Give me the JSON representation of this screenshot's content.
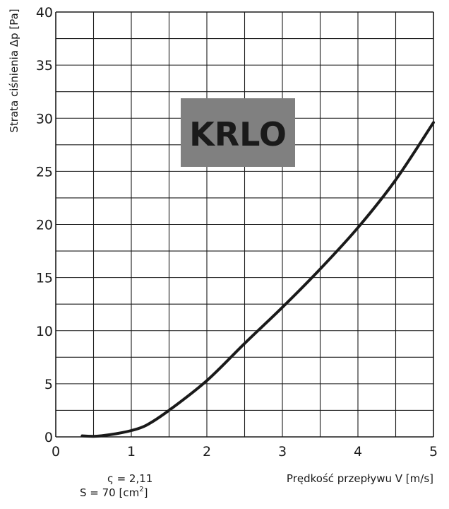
{
  "chart_data": {
    "type": "line",
    "ylabel": "Strata ciśnienia Δp [Pa]",
    "xlabel": "Prędkość przepływu V [m/s]",
    "xlim": [
      0,
      5
    ],
    "ylim": [
      0,
      40
    ],
    "x_ticks": [
      "0",
      "1",
      "2",
      "3",
      "4",
      "5"
    ],
    "y_ticks": [
      "0",
      "5",
      "10",
      "15",
      "20",
      "25",
      "30",
      "35",
      "40"
    ],
    "grid": true,
    "series": [
      {
        "x": [
          0.35,
          0.5,
          0.6,
          0.8,
          1.0,
          1.2,
          1.5,
          2.0,
          2.5,
          3.0,
          3.5,
          4.0,
          4.5,
          5.0
        ],
        "y": [
          0.1,
          0.05,
          0.1,
          0.3,
          0.6,
          1.1,
          2.5,
          5.3,
          8.8,
          12.2,
          15.8,
          19.7,
          24.2,
          29.6
        ]
      }
    ],
    "annotations": {
      "zeta": "ς = 2,11",
      "area_prefix": "S = 70 [cm",
      "area_sup": "2",
      "area_suffix": "]"
    },
    "badge": "KRLO"
  },
  "colors": {
    "grid": "#1a1a1a",
    "curve": "#1a1a1a",
    "badge_bg": "#808080",
    "badge_text": "#ffffff"
  }
}
